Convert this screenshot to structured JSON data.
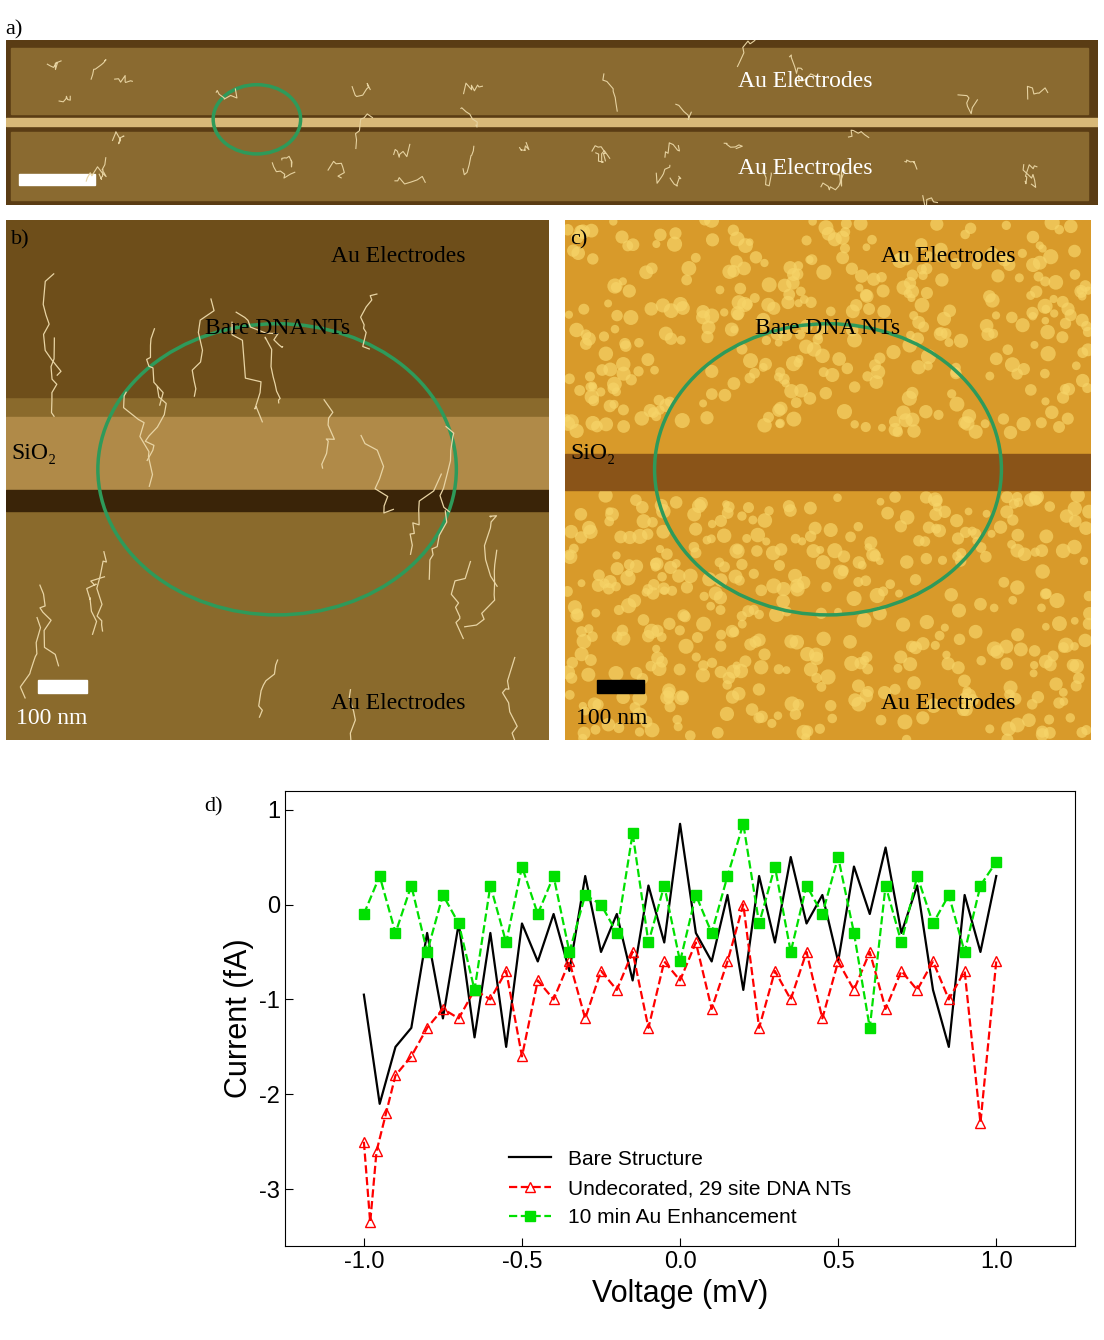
{
  "images": [
    {
      "panel": "a)",
      "electrode_labels": [
        "Au Electrodes",
        "Au Electrodes"
      ]
    },
    {
      "panel": "b)",
      "electrode_labels": [
        "Au Electrodes",
        "Au Electrodes"
      ],
      "feature_label": "Bare DNA NTs",
      "substrate_label": "SiO₂",
      "scale_bar": "100 nm"
    },
    {
      "panel": "c)",
      "electrode_labels": [
        "Au Electrodes",
        "Au Electrodes"
      ],
      "feature_label": "Bare DNA NTs",
      "substrate_label": "SiO₂",
      "scale_bar": "100 nm"
    }
  ],
  "chart_data": {
    "type": "line",
    "panel": "d)",
    "x_label": "Voltage (mV)",
    "y_label": "Current (fA)",
    "xlim": [
      -1.25,
      1.25
    ],
    "xticks": [
      -1.0,
      -0.5,
      0.0,
      0.5,
      1.0
    ],
    "ylim": [
      -3.6,
      1.2
    ],
    "yticks": [
      -3,
      -2,
      -1,
      0,
      1
    ],
    "legend": "lower center",
    "series": [
      {
        "name": "Bare Structure",
        "color": "#000000",
        "line_style": "solid",
        "marker": "none",
        "x": [
          -1.0,
          -0.95,
          -0.9,
          -0.85,
          -0.8,
          -0.75,
          -0.7,
          -0.65,
          -0.6,
          -0.55,
          -0.5,
          -0.45,
          -0.4,
          -0.35,
          -0.3,
          -0.25,
          -0.2,
          -0.15,
          -0.1,
          -0.05,
          0.0,
          0.05,
          0.1,
          0.15,
          0.2,
          0.25,
          0.3,
          0.35,
          0.4,
          0.45,
          0.5,
          0.55,
          0.6,
          0.65,
          0.7,
          0.75,
          0.8,
          0.85,
          0.9,
          0.95,
          1.0
        ],
        "values": [
          -0.95,
          -2.1,
          -1.5,
          -1.3,
          -0.3,
          -1.2,
          -0.2,
          -1.4,
          -0.3,
          -1.5,
          -0.2,
          -0.6,
          -0.1,
          -0.7,
          0.3,
          -0.5,
          -0.1,
          -0.8,
          0.2,
          -0.4,
          0.85,
          -0.3,
          -0.6,
          0.1,
          -0.9,
          0.3,
          -0.4,
          0.5,
          -0.2,
          0.1,
          -0.6,
          0.4,
          -0.1,
          0.6,
          -0.3,
          0.2,
          -0.9,
          -1.5,
          0.1,
          -0.5,
          0.3
        ]
      },
      {
        "name": "Undecorated, 29 site DNA NTs",
        "color": "#ff0000",
        "line_style": "dashed",
        "marker": "open_triangle",
        "x": [
          -1.0,
          -0.98,
          -0.96,
          -0.93,
          -0.9,
          -0.85,
          -0.8,
          -0.75,
          -0.7,
          -0.65,
          -0.6,
          -0.55,
          -0.5,
          -0.45,
          -0.4,
          -0.35,
          -0.3,
          -0.25,
          -0.2,
          -0.15,
          -0.1,
          -0.05,
          0.0,
          0.05,
          0.1,
          0.15,
          0.2,
          0.25,
          0.3,
          0.35,
          0.4,
          0.45,
          0.5,
          0.55,
          0.6,
          0.65,
          0.7,
          0.75,
          0.8,
          0.85,
          0.9,
          0.95,
          1.0
        ],
        "values": [
          -2.5,
          -3.35,
          -2.6,
          -2.2,
          -1.8,
          -1.6,
          -1.3,
          -1.1,
          -1.2,
          -0.9,
          -1.0,
          -0.7,
          -1.6,
          -0.8,
          -1.0,
          -0.6,
          -1.2,
          -0.7,
          -0.9,
          -0.5,
          -1.3,
          -0.6,
          -0.8,
          -0.4,
          -1.1,
          -0.6,
          0.0,
          -1.3,
          -0.7,
          -1.0,
          -0.5,
          -1.2,
          -0.6,
          -0.9,
          -0.5,
          -1.1,
          -0.7,
          -0.9,
          -0.6,
          -1.0,
          -0.7,
          -2.3,
          -0.6
        ]
      },
      {
        "name": "10 min Au Enhancement",
        "color": "#00e000",
        "line_style": "dashed",
        "marker": "square",
        "x": [
          -1.0,
          -0.95,
          -0.9,
          -0.85,
          -0.8,
          -0.75,
          -0.7,
          -0.65,
          -0.6,
          -0.55,
          -0.5,
          -0.45,
          -0.4,
          -0.35,
          -0.3,
          -0.25,
          -0.2,
          -0.15,
          -0.1,
          -0.05,
          0.0,
          0.05,
          0.1,
          0.15,
          0.2,
          0.25,
          0.3,
          0.35,
          0.4,
          0.45,
          0.5,
          0.55,
          0.6,
          0.65,
          0.7,
          0.75,
          0.8,
          0.85,
          0.9,
          0.95,
          1.0
        ],
        "values": [
          -0.1,
          0.3,
          -0.3,
          0.2,
          -0.5,
          0.1,
          -0.2,
          -0.9,
          0.2,
          -0.4,
          0.4,
          -0.1,
          0.3,
          -0.5,
          0.1,
          0.0,
          -0.3,
          0.75,
          -0.4,
          0.2,
          -0.6,
          0.1,
          -0.3,
          0.3,
          0.85,
          -0.2,
          0.4,
          -0.5,
          0.2,
          -0.1,
          0.5,
          -0.3,
          -1.3,
          0.2,
          -0.4,
          0.3,
          -0.2,
          0.1,
          -0.5,
          0.2,
          0.45
        ]
      }
    ]
  }
}
